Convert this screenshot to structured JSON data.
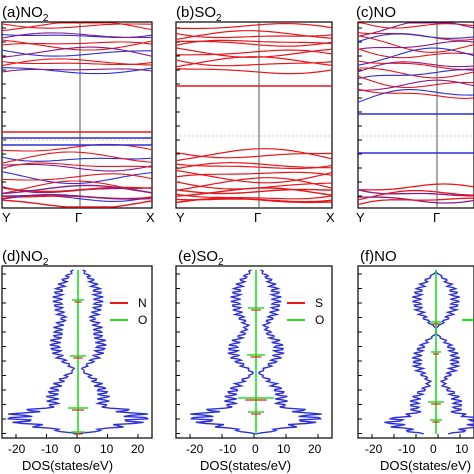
{
  "figure": {
    "panels": [
      {
        "id": "a",
        "label": "(a)NO",
        "sub": "2",
        "type": "band"
      },
      {
        "id": "b",
        "label": "(b)SO",
        "sub": "2",
        "type": "band"
      },
      {
        "id": "c",
        "label": "(c)NO",
        "sub": "",
        "type": "band"
      },
      {
        "id": "d",
        "label": "(d)NO",
        "sub": "2",
        "type": "dos"
      },
      {
        "id": "e",
        "label": "(e)SO",
        "sub": "2",
        "type": "dos"
      },
      {
        "id": "f",
        "label": "(f)NO",
        "sub": "",
        "type": "dos"
      }
    ],
    "band_ticks": [
      "Y",
      "Γ",
      "X"
    ],
    "dos_xlabel": "DOS(states/eV)",
    "dos_xticks": [
      "-20",
      "-10",
      "0",
      "10",
      "20"
    ],
    "colors": {
      "red": "#e8171b",
      "blue": "#2b2fd8",
      "purple": "#8a1a8a",
      "green": "#22dd22",
      "axis": "#000000",
      "grid": "#999999"
    }
  },
  "legends": {
    "d": [
      {
        "name": "N",
        "color": "#e8171b"
      },
      {
        "name": "O",
        "color": "#22dd22"
      }
    ],
    "e": [
      {
        "name": "S",
        "color": "#e8171b"
      },
      {
        "name": "O",
        "color": "#22dd22"
      }
    ],
    "f": [
      {
        "name": "",
        "color": "#22dd22"
      }
    ]
  }
}
